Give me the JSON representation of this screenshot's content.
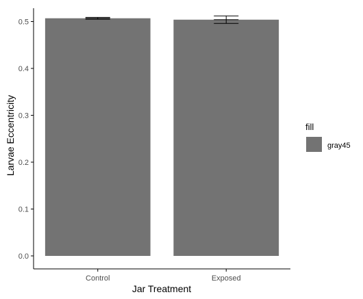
{
  "chart_data": {
    "type": "bar",
    "categories": [
      "Control",
      "Exposed"
    ],
    "values": [
      0.507,
      0.504
    ],
    "error": [
      0.002,
      0.008
    ],
    "xlabel": "Jar Treatment",
    "ylabel": "Larvae Eccentricity",
    "ylim": [
      0,
      0.53
    ],
    "yticks": [
      "0.0",
      "0.1",
      "0.2",
      "0.3",
      "0.4",
      "0.5"
    ],
    "legend": {
      "title": "fill",
      "label": "gray45",
      "position": "right"
    },
    "grid": false,
    "colors": {
      "bar": "#737373",
      "axis": "#000000",
      "tick_text": "#4d4d4d"
    }
  }
}
